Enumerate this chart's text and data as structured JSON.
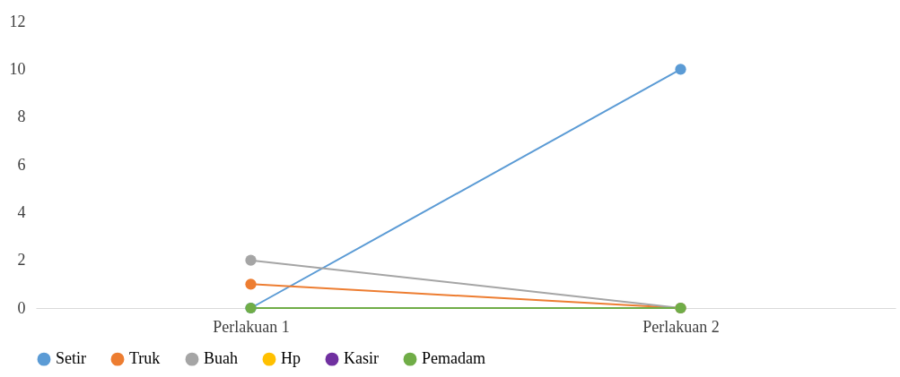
{
  "chart_data": {
    "type": "line",
    "categories": [
      "Perlakuan 1",
      "Perlakuan 2"
    ],
    "series": [
      {
        "name": "Setir",
        "color": "#5b9bd5",
        "values": [
          0,
          10
        ]
      },
      {
        "name": "Truk",
        "color": "#ed7d31",
        "values": [
          1,
          0
        ]
      },
      {
        "name": "Buah",
        "color": "#a5a5a5",
        "values": [
          2,
          0
        ]
      },
      {
        "name": "Hp",
        "color": "#ffc000",
        "values": [
          null,
          null
        ]
      },
      {
        "name": "Kasir",
        "color": "#7030a0",
        "values": [
          null,
          null
        ]
      },
      {
        "name": "Pemadam",
        "color": "#70ad47",
        "values": [
          0,
          0
        ]
      }
    ],
    "ylim": [
      0,
      12
    ],
    "yticks": [
      0,
      2,
      4,
      6,
      8,
      10,
      12
    ],
    "grid": false,
    "legend": "bottom",
    "marker": "circle",
    "line_style": "solid"
  }
}
